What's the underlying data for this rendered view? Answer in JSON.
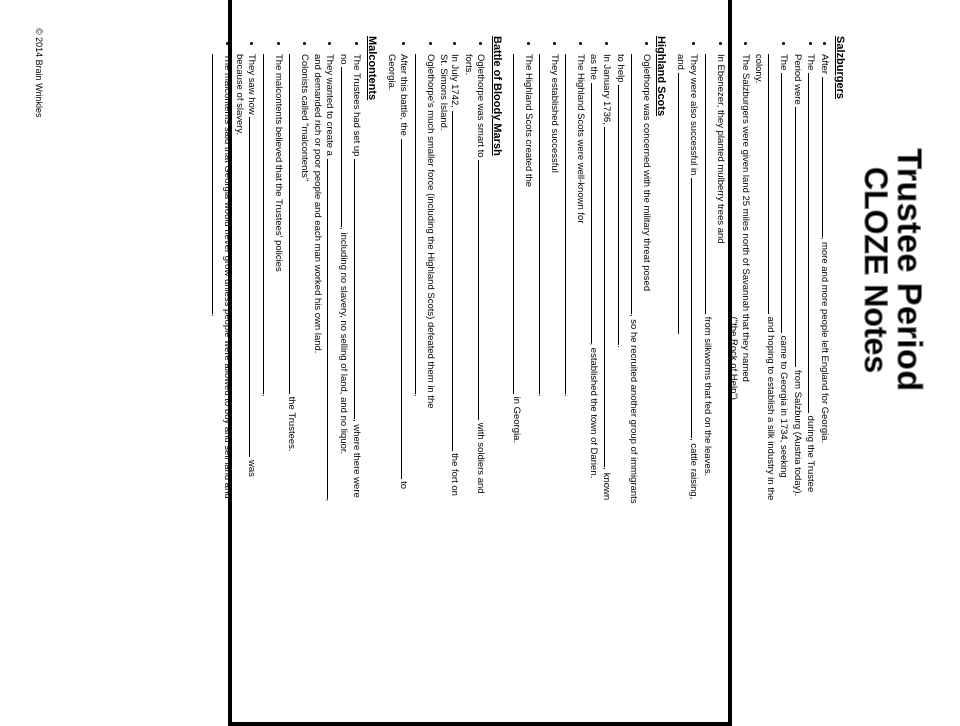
{
  "title_line1": "Trustee Period",
  "title_line2": "CLOZE Notes",
  "copyright": "© 2014 Brain Wrinkles",
  "blanks": {
    "short": 90,
    "med": 160,
    "long": 260,
    "xl": 340
  },
  "sections": [
    {
      "heading": "Salzburgers",
      "items": [
        "After ____________________________________________, more and more people left England for Georgia.",
        "The __________________________________________________________ during the Trustee Period were _________________________________________________ from Salzburg (Austria today).",
        "The _________________________________________________________ came to Georgia in 1734, seeking ____________________________________________________ and hoping to establish a silk industry in the colony.",
        "The Salzburgers were given land 25 miles north of Savannah that they named _______________________________________________________ (\"the Rock of Help\").",
        "In Ebenezer, they planted mulberry trees and ______________________________________________________ from silkworms that fed on the leaves.",
        "They were also successful in __________________________________________________, cattle raising, and _________________________________________________________."
      ]
    },
    {
      "heading": "Highland Scots",
      "items": [
        "Oglethorpe was concerned with the military threat posed _______________________________________________________, so he recruited another group of immigrants to help _______________________________________________________.",
        "In January 1736, ___________________________________________________________, known as the ______________________________________________, established the town of Darien.",
        "The Highland Scots were well-known for __________________________________________________________.",
        "They established successful __________________________________________________________.",
        "The Highland Scots created the ____________________________________________________________ in Georgia."
      ]
    },
    {
      "heading": "Battle of Bloody Marsh",
      "items": [
        "Oglethorpe was smart to _________________________________________________________ with soldiers and forts.",
        "In July 1742, __________________________________________________________________ the fort on St. Simons Island.",
        "Oglethorpe's much smaller force (including the Highland Scots) defeated them in the ____________________________________________________________.",
        "After this battle, the ______________________________________________________________________ to Georgia."
      ]
    },
    {
      "heading": "Malcontents",
      "items": [
        "The Trustees had set up _____________________________________________________, where there were no ______________________________, including no slavery, no selling of land, and no liquor.",
        "They wanted to create a _____________________________________________________________, and demanded rich or poor people and each man worked his own land.",
        "Colonists called \"malcontents\" ___________________________________________________________________ the Trustees.",
        "The malcontents believed that the Trustees' policies ________________________________________________________________.",
        "They saw how __________________________________________________________________ was because of slavery.",
        "The malcontents said that Georgia would never grow unless people were allowed to buy and sell land and _______________________________________________________."
      ]
    }
  ]
}
